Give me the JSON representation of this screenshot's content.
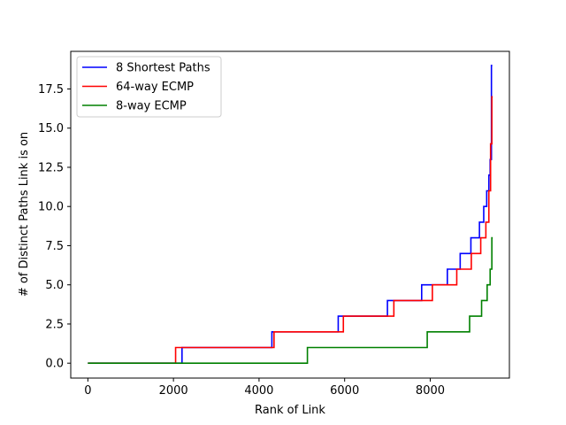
{
  "chart_data": {
    "type": "line",
    "title": "",
    "xlabel": "Rank of Link",
    "ylabel": "# of Distinct Paths Link is on",
    "xlim": [
      -400,
      9850
    ],
    "ylim": [
      -0.95,
      19.9
    ],
    "xticks": [
      0,
      2000,
      4000,
      6000,
      8000
    ],
    "xtick_labels": [
      "0",
      "2000",
      "4000",
      "6000",
      "8000"
    ],
    "yticks": [
      0.0,
      2.5,
      5.0,
      7.5,
      10.0,
      12.5,
      15.0,
      17.5
    ],
    "ytick_labels": [
      "0.0",
      "2.5",
      "5.0",
      "7.5",
      "10.0",
      "12.5",
      "15.0",
      "17.5"
    ],
    "grid": false,
    "legend_position": "top-left",
    "series": [
      {
        "name": "8 Shortest Paths",
        "color": "#0000ff",
        "x": [
          0,
          2200,
          2200,
          4300,
          4300,
          5850,
          5850,
          7000,
          7000,
          7800,
          7800,
          8400,
          8400,
          8700,
          8700,
          8950,
          8950,
          9150,
          9150,
          9250,
          9250,
          9320,
          9320,
          9370,
          9370,
          9400,
          9400,
          9430,
          9430,
          9450
        ],
        "y": [
          0,
          0,
          1,
          1,
          2,
          2,
          3,
          3,
          4,
          4,
          5,
          5,
          6,
          6,
          7,
          7,
          8,
          8,
          9,
          9,
          10,
          10,
          11,
          11,
          12,
          12,
          13,
          13,
          19,
          19
        ]
      },
      {
        "name": "64-way ECMP",
        "color": "#ff0000",
        "x": [
          0,
          2050,
          2050,
          4350,
          4350,
          5970,
          5970,
          7150,
          7150,
          8050,
          8050,
          8620,
          8620,
          8960,
          8960,
          9180,
          9180,
          9300,
          9300,
          9370,
          9370,
          9410,
          9410,
          9440,
          9440,
          9460
        ],
        "y": [
          0,
          0,
          1,
          1,
          2,
          2,
          3,
          3,
          4,
          4,
          5,
          5,
          6,
          6,
          7,
          7,
          8,
          8,
          9,
          9,
          11,
          11,
          14,
          14,
          17,
          17
        ]
      },
      {
        "name": "8-way ECMP",
        "color": "#008000",
        "x": [
          0,
          5130,
          5130,
          7930,
          7930,
          8920,
          8920,
          9200,
          9200,
          9330,
          9330,
          9400,
          9400,
          9440,
          9440,
          9460
        ],
        "y": [
          0,
          0,
          1,
          1,
          2,
          2,
          3,
          3,
          4,
          4,
          5,
          5,
          6,
          6,
          8,
          8
        ]
      }
    ]
  }
}
